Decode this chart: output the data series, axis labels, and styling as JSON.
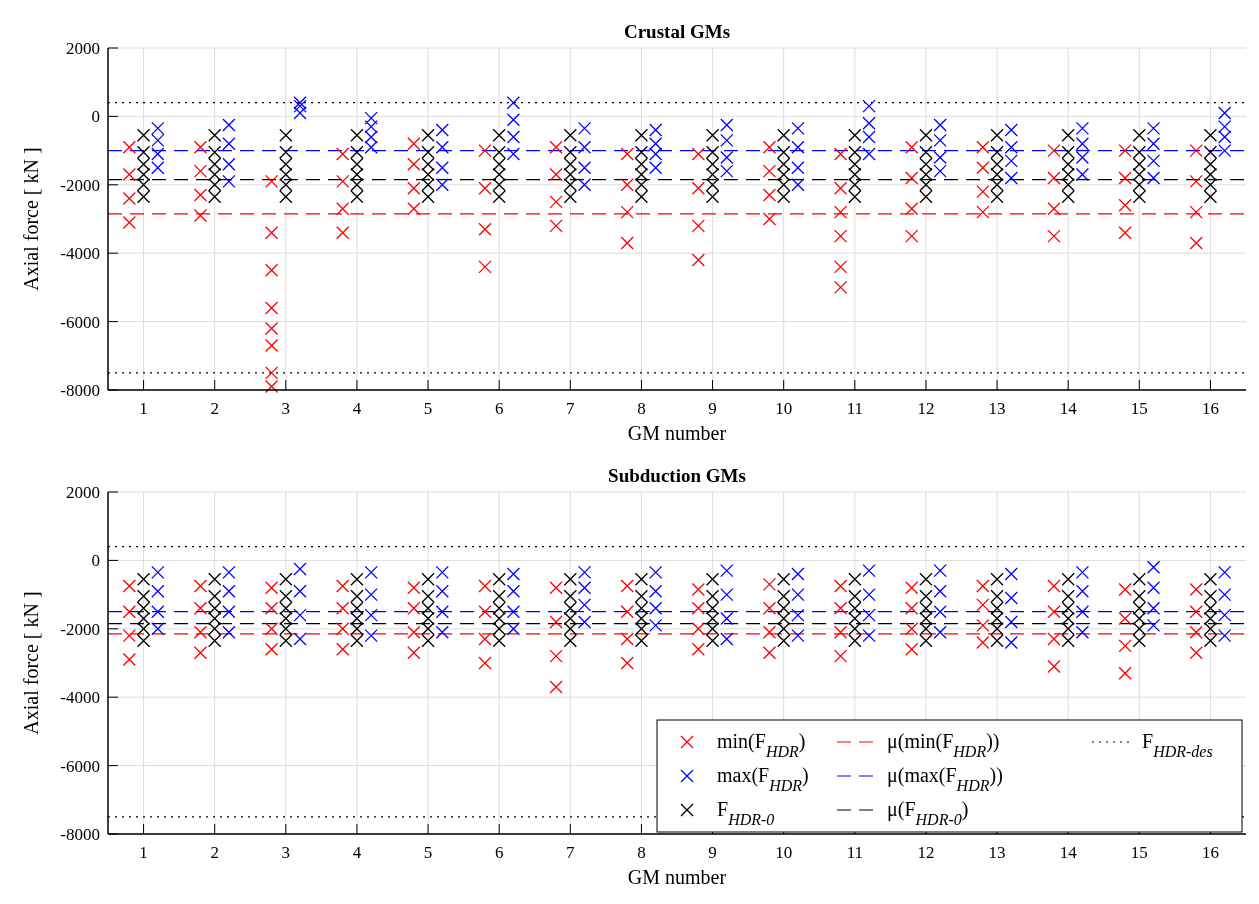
{
  "chart_data": [
    {
      "type": "scatter",
      "title": "Crustal GMs",
      "xlabel": "GM number",
      "ylabel": "Axial force [ kN ]",
      "xlim": [
        0.5,
        16.5
      ],
      "xticks": [
        1,
        2,
        3,
        4,
        5,
        6,
        7,
        8,
        9,
        10,
        11,
        12,
        13,
        14,
        15,
        16
      ],
      "ylim": [
        -8000,
        2000
      ],
      "yticks": [
        -8000,
        -6000,
        -4000,
        -2000,
        0,
        2000
      ],
      "grid": true,
      "marker": "cross",
      "legend": false,
      "series": [
        {
          "color": "#ff0000",
          "x": [
            0.8,
            0.8,
            0.8,
            0.8,
            1.8,
            1.8,
            1.8,
            1.8,
            2.8,
            2.8,
            2.8,
            2.8,
            2.8,
            2.8,
            2.8,
            2.8,
            3.8,
            3.8,
            3.8,
            3.8,
            4.8,
            4.8,
            4.8,
            4.8,
            5.8,
            5.8,
            5.8,
            5.8,
            6.8,
            6.8,
            6.8,
            6.8,
            7.8,
            7.8,
            7.8,
            7.8,
            8.8,
            8.8,
            8.8,
            8.8,
            9.8,
            9.8,
            9.8,
            9.8,
            10.8,
            10.8,
            10.8,
            10.8,
            10.8,
            10.8,
            11.8,
            11.8,
            11.8,
            11.8,
            12.8,
            12.8,
            12.8,
            12.8,
            13.8,
            13.8,
            13.8,
            13.8,
            14.8,
            14.8,
            14.8,
            14.8,
            15.8,
            15.8,
            15.8,
            15.8
          ],
          "values": [
            -900,
            -1700,
            -2400,
            -3100,
            -900,
            -1600,
            -2300,
            -2900,
            -1900,
            -3400,
            -4500,
            -5600,
            -6200,
            -6700,
            -7500,
            -7900,
            -1100,
            -1900,
            -2700,
            -3400,
            -800,
            -1400,
            -2100,
            -2700,
            -1000,
            -2100,
            -3300,
            -4400,
            -900,
            -1700,
            -2500,
            -3200,
            -1100,
            -2000,
            -2800,
            -3700,
            -1100,
            -2100,
            -3200,
            -4200,
            -900,
            -1600,
            -2300,
            -3000,
            -1100,
            -2100,
            -2800,
            -3500,
            -4400,
            -5000,
            -900,
            -1800,
            -2700,
            -3500,
            -900,
            -1500,
            -2200,
            -2800,
            -1000,
            -1800,
            -2700,
            -3500,
            -1000,
            -1800,
            -2600,
            -3400,
            -1000,
            -1900,
            -2800,
            -3700
          ]
        },
        {
          "color": "#0000ff",
          "x": [
            1.2,
            1.2,
            1.2,
            1.2,
            2.2,
            2.2,
            2.2,
            2.2,
            3.2,
            3.2,
            3.2,
            4.2,
            4.2,
            4.2,
            4.2,
            5.2,
            5.2,
            5.2,
            5.2,
            6.2,
            6.2,
            6.2,
            6.2,
            7.2,
            7.2,
            7.2,
            7.2,
            8.2,
            8.2,
            8.2,
            8.2,
            9.2,
            9.2,
            9.2,
            9.2,
            10.2,
            10.2,
            10.2,
            10.2,
            11.2,
            11.2,
            11.2,
            11.2,
            12.2,
            12.2,
            12.2,
            12.2,
            13.2,
            13.2,
            13.2,
            13.2,
            14.2,
            14.2,
            14.2,
            14.2,
            15.2,
            15.2,
            15.2,
            15.2,
            16.2,
            16.2,
            16.2,
            16.2
          ],
          "values": [
            -350,
            -700,
            -1100,
            -1500,
            -250,
            -800,
            -1400,
            -1900,
            400,
            300,
            100,
            -50,
            -300,
            -600,
            -900,
            -400,
            -900,
            -1500,
            -2000,
            400,
            -100,
            -600,
            -1100,
            -350,
            -900,
            -1500,
            -2000,
            -400,
            -800,
            -1100,
            -1500,
            -250,
            -700,
            -1200,
            -1600,
            -350,
            -900,
            -1500,
            -2000,
            300,
            -200,
            -600,
            -1100,
            -250,
            -700,
            -1200,
            -1600,
            -400,
            -900,
            -1300,
            -1800,
            -350,
            -800,
            -1200,
            -1700,
            -350,
            -800,
            -1300,
            -1800,
            100,
            -300,
            -600,
            -1000
          ]
        },
        {
          "color": "#000000",
          "x": [
            1,
            1,
            1,
            1,
            1,
            1,
            2,
            2,
            2,
            2,
            2,
            2,
            3,
            3,
            3,
            3,
            3,
            3,
            4,
            4,
            4,
            4,
            4,
            4,
            5,
            5,
            5,
            5,
            5,
            5,
            6,
            6,
            6,
            6,
            6,
            6,
            7,
            7,
            7,
            7,
            7,
            7,
            8,
            8,
            8,
            8,
            8,
            8,
            9,
            9,
            9,
            9,
            9,
            9,
            10,
            10,
            10,
            10,
            10,
            10,
            11,
            11,
            11,
            11,
            11,
            11,
            12,
            12,
            12,
            12,
            12,
            12,
            13,
            13,
            13,
            13,
            13,
            13,
            14,
            14,
            14,
            14,
            14,
            14,
            15,
            15,
            15,
            15,
            15,
            15,
            16,
            16,
            16,
            16,
            16,
            16
          ],
          "values": [
            -550,
            -1050,
            -1400,
            -1700,
            -2000,
            -2350,
            -550,
            -1050,
            -1400,
            -1700,
            -2000,
            -2350,
            -550,
            -1050,
            -1400,
            -1700,
            -2000,
            -2350,
            -550,
            -1050,
            -1400,
            -1700,
            -2000,
            -2350,
            -550,
            -1050,
            -1400,
            -1700,
            -2000,
            -2350,
            -550,
            -1050,
            -1400,
            -1700,
            -2000,
            -2350,
            -550,
            -1050,
            -1400,
            -1700,
            -2000,
            -2350,
            -550,
            -1050,
            -1400,
            -1700,
            -2000,
            -2350,
            -550,
            -1050,
            -1400,
            -1700,
            -2000,
            -2350,
            -550,
            -1050,
            -1400,
            -1700,
            -2000,
            -2350,
            -550,
            -1050,
            -1400,
            -1700,
            -2000,
            -2350,
            -550,
            -1050,
            -1400,
            -1700,
            -2000,
            -2350,
            -550,
            -1050,
            -1400,
            -1700,
            -2000,
            -2350,
            -550,
            -1050,
            -1400,
            -1700,
            -2000,
            -2350,
            -550,
            -1050,
            -1400,
            -1700,
            -2000,
            -2350,
            -550,
            -1050,
            -1400,
            -1700,
            -2000,
            -2350
          ]
        }
      ],
      "ref_lines": [
        {
          "axis": "y",
          "value": -2850,
          "color": "#ff0000",
          "line_style": "dashed"
        },
        {
          "axis": "y",
          "value": -1000,
          "color": "#0000ff",
          "line_style": "dashed"
        },
        {
          "axis": "y",
          "value": -1850,
          "color": "#000000",
          "line_style": "dashed"
        },
        {
          "axis": "y",
          "value": 400,
          "color": "#000000",
          "line_style": "dotted"
        },
        {
          "axis": "y",
          "value": -7500,
          "color": "#000000",
          "line_style": "dotted"
        }
      ]
    },
    {
      "type": "scatter",
      "title": "Subduction GMs",
      "xlabel": "GM number",
      "ylabel": "Axial force [ kN ]",
      "xlim": [
        0.5,
        16.5
      ],
      "xticks": [
        1,
        2,
        3,
        4,
        5,
        6,
        7,
        8,
        9,
        10,
        11,
        12,
        13,
        14,
        15,
        16
      ],
      "ylim": [
        -8000,
        2000
      ],
      "yticks": [
        -8000,
        -6000,
        -4000,
        -2000,
        0,
        2000
      ],
      "grid": true,
      "marker": "cross",
      "legend": "bottom right",
      "series": [
        {
          "name": "min(F$_{HDR}$)",
          "color": "#ff0000",
          "x": [
            0.8,
            0.8,
            0.8,
            0.8,
            1.8,
            1.8,
            1.8,
            1.8,
            2.8,
            2.8,
            2.8,
            2.8,
            3.8,
            3.8,
            3.8,
            3.8,
            4.8,
            4.8,
            4.8,
            4.8,
            5.8,
            5.8,
            5.8,
            5.8,
            6.8,
            6.8,
            6.8,
            6.8,
            7.8,
            7.8,
            7.8,
            7.8,
            8.8,
            8.8,
            8.8,
            8.8,
            9.8,
            9.8,
            9.8,
            9.8,
            10.8,
            10.8,
            10.8,
            10.8,
            11.8,
            11.8,
            11.8,
            11.8,
            12.8,
            12.8,
            12.8,
            12.8,
            13.8,
            13.8,
            13.8,
            13.8,
            14.8,
            14.8,
            14.8,
            14.8,
            15.8,
            15.8,
            15.8,
            15.8
          ],
          "values": [
            -750,
            -1500,
            -2200,
            -2900,
            -750,
            -1400,
            -2100,
            -2700,
            -800,
            -1400,
            -2000,
            -2600,
            -750,
            -1400,
            -2000,
            -2600,
            -800,
            -1400,
            -2100,
            -2700,
            -750,
            -1500,
            -2300,
            -3000,
            -800,
            -1800,
            -2800,
            -3700,
            -750,
            -1500,
            -2300,
            -3000,
            -850,
            -1400,
            -2000,
            -2600,
            -700,
            -1400,
            -2100,
            -2700,
            -750,
            -1400,
            -2100,
            -2800,
            -800,
            -1400,
            -2000,
            -2600,
            -750,
            -1300,
            -1900,
            -2400,
            -750,
            -1500,
            -2300,
            -3100,
            -850,
            -1700,
            -2500,
            -3300,
            -850,
            -1500,
            -2100,
            -2700
          ]
        },
        {
          "name": "max(F$_{HDR}$)",
          "color": "#0000ff",
          "x": [
            1.2,
            1.2,
            1.2,
            1.2,
            2.2,
            2.2,
            2.2,
            2.2,
            3.2,
            3.2,
            3.2,
            3.2,
            4.2,
            4.2,
            4.2,
            4.2,
            5.2,
            5.2,
            5.2,
            5.2,
            6.2,
            6.2,
            6.2,
            6.2,
            7.2,
            7.2,
            7.2,
            7.2,
            8.2,
            8.2,
            8.2,
            8.2,
            9.2,
            9.2,
            9.2,
            9.2,
            10.2,
            10.2,
            10.2,
            10.2,
            11.2,
            11.2,
            11.2,
            11.2,
            12.2,
            12.2,
            12.2,
            12.2,
            13.2,
            13.2,
            13.2,
            13.2,
            14.2,
            14.2,
            14.2,
            14.2,
            15.2,
            15.2,
            15.2,
            15.2,
            16.2,
            16.2,
            16.2,
            16.2
          ],
          "values": [
            -350,
            -900,
            -1500,
            -2000,
            -350,
            -900,
            -1500,
            -2100,
            -250,
            -900,
            -1600,
            -2300,
            -350,
            -1000,
            -1600,
            -2200,
            -350,
            -900,
            -1500,
            -2100,
            -400,
            -900,
            -1500,
            -2000,
            -350,
            -800,
            -1300,
            -1800,
            -350,
            -900,
            -1400,
            -1900,
            -300,
            -1000,
            -1700,
            -2300,
            -400,
            -1000,
            -1600,
            -2200,
            -300,
            -1000,
            -1600,
            -2200,
            -300,
            -900,
            -1500,
            -2100,
            -400,
            -1100,
            -1800,
            -2400,
            -350,
            -900,
            -1500,
            -2100,
            -200,
            -800,
            -1400,
            -1900,
            -350,
            -1000,
            -1600,
            -2200
          ]
        },
        {
          "name": "F$_{HDR-0}$",
          "color": "#000000",
          "x": [
            1,
            1,
            1,
            1,
            1,
            1,
            2,
            2,
            2,
            2,
            2,
            2,
            3,
            3,
            3,
            3,
            3,
            3,
            4,
            4,
            4,
            4,
            4,
            4,
            5,
            5,
            5,
            5,
            5,
            5,
            6,
            6,
            6,
            6,
            6,
            6,
            7,
            7,
            7,
            7,
            7,
            7,
            8,
            8,
            8,
            8,
            8,
            8,
            9,
            9,
            9,
            9,
            9,
            9,
            10,
            10,
            10,
            10,
            10,
            10,
            11,
            11,
            11,
            11,
            11,
            11,
            12,
            12,
            12,
            12,
            12,
            12,
            13,
            13,
            13,
            13,
            13,
            13,
            14,
            14,
            14,
            14,
            14,
            14,
            15,
            15,
            15,
            15,
            15,
            15,
            16,
            16,
            16,
            16,
            16,
            16
          ],
          "values": [
            -550,
            -1050,
            -1400,
            -1700,
            -2000,
            -2350,
            -550,
            -1050,
            -1400,
            -1700,
            -2000,
            -2350,
            -550,
            -1050,
            -1400,
            -1700,
            -2000,
            -2350,
            -550,
            -1050,
            -1400,
            -1700,
            -2000,
            -2350,
            -550,
            -1050,
            -1400,
            -1700,
            -2000,
            -2350,
            -550,
            -1050,
            -1400,
            -1700,
            -2000,
            -2350,
            -550,
            -1050,
            -1400,
            -1700,
            -2000,
            -2350,
            -550,
            -1050,
            -1400,
            -1700,
            -2000,
            -2350,
            -550,
            -1050,
            -1400,
            -1700,
            -2000,
            -2350,
            -550,
            -1050,
            -1400,
            -1700,
            -2000,
            -2350,
            -550,
            -1050,
            -1400,
            -1700,
            -2000,
            -2350,
            -550,
            -1050,
            -1400,
            -1700,
            -2000,
            -2350,
            -550,
            -1050,
            -1400,
            -1700,
            -2000,
            -2350,
            -550,
            -1050,
            -1400,
            -1700,
            -2000,
            -2350,
            -550,
            -1050,
            -1400,
            -1700,
            -2000,
            -2350,
            -550,
            -1050,
            -1400,
            -1700,
            -2000,
            -2350
          ]
        }
      ],
      "ref_lines": [
        {
          "axis": "y",
          "value": -2150,
          "color": "#ff0000",
          "line_style": "dashed",
          "label": "μ(min(F$_{HDR}$))"
        },
        {
          "axis": "y",
          "value": -1500,
          "color": "#0000ff",
          "line_style": "dashed",
          "label": "μ(max(F$_{HDR}$))"
        },
        {
          "axis": "y",
          "value": -1850,
          "color": "#000000",
          "line_style": "dashed",
          "label": "μ(F$_{HDR-0}$)"
        },
        {
          "axis": "y",
          "value": 400,
          "color": "#000000",
          "line_style": "dotted",
          "label": "F$_{HDR-des}$"
        },
        {
          "axis": "y",
          "value": -7500,
          "color": "#000000",
          "line_style": "dotted"
        }
      ]
    }
  ]
}
